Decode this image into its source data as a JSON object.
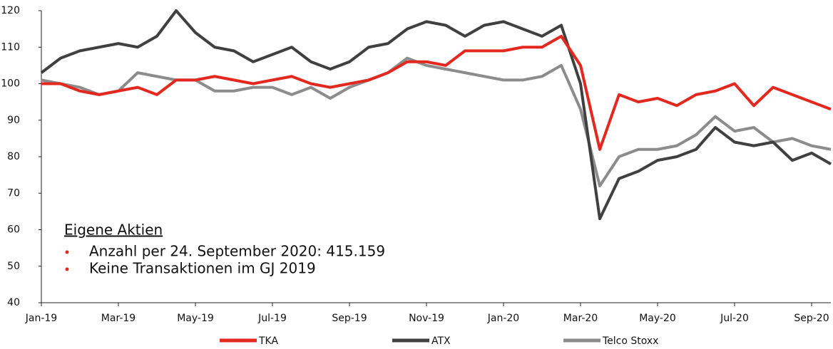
{
  "chart_data": {
    "type": "line",
    "categories": [
      "Jan-19",
      null,
      null,
      null,
      "Mar-19",
      null,
      null,
      null,
      "May-19",
      null,
      null,
      null,
      "Jul-19",
      null,
      null,
      null,
      "Sep-19",
      null,
      null,
      null,
      "Nov-19",
      null,
      null,
      null,
      "Jan-20",
      null,
      null,
      null,
      "Mar-20",
      null,
      null,
      null,
      "May-20",
      null,
      null,
      null,
      "Jul-20",
      null,
      null,
      null,
      "Sep-20",
      null
    ],
    "series": [
      {
        "name": "TKA",
        "color": "#e3281f",
        "values": [
          100,
          100,
          98,
          97,
          98,
          99,
          97,
          101,
          101,
          102,
          101,
          100,
          101,
          102,
          100,
          99,
          100,
          101,
          103,
          106,
          106,
          105,
          109,
          109,
          109,
          110,
          110,
          113,
          105,
          82,
          97,
          95,
          96,
          94,
          97,
          98,
          100,
          94,
          99,
          97,
          95,
          93
        ]
      },
      {
        "name": "ATX",
        "color": "#404040",
        "values": [
          103,
          107,
          109,
          110,
          111,
          110,
          113,
          120,
          114,
          110,
          109,
          106,
          108,
          110,
          106,
          104,
          106,
          110,
          111,
          115,
          117,
          116,
          113,
          116,
          117,
          115,
          113,
          116,
          100,
          63,
          74,
          76,
          79,
          80,
          82,
          88,
          84,
          83,
          84,
          79,
          81,
          78
        ]
      },
      {
        "name": "Telco Stoxx",
        "color": "#8c8c8c",
        "values": [
          101,
          100,
          99,
          97,
          98,
          103,
          102,
          101,
          101,
          98,
          98,
          99,
          99,
          97,
          99,
          96,
          99,
          101,
          103,
          107,
          105,
          104,
          103,
          102,
          101,
          101,
          102,
          105,
          93,
          72,
          80,
          82,
          82,
          83,
          86,
          91,
          87,
          88,
          84,
          85,
          83,
          82
        ]
      }
    ],
    "ylim": [
      40,
      120
    ],
    "yticks": [
      40,
      50,
      60,
      70,
      80,
      90,
      100,
      110,
      120
    ],
    "annotation_title": "Eigene Aktien",
    "annotations": [
      "Anzahl per 24. September 2020: 415.159",
      "Keine Transaktionen im GJ 2019"
    ],
    "legend": "bottom"
  }
}
